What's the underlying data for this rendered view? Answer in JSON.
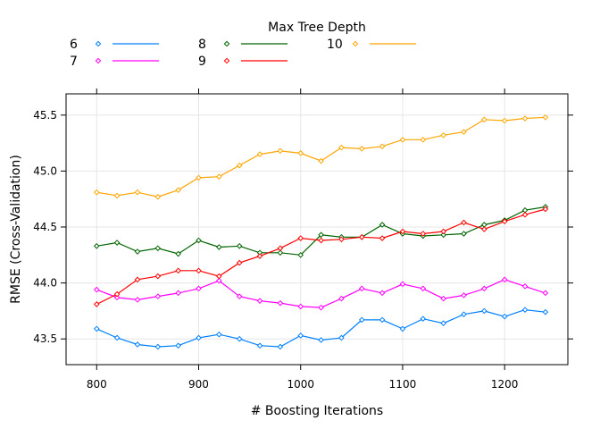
{
  "chart_data": {
    "type": "line",
    "xlabel": "# Boosting Iterations",
    "ylabel": "RMSE (Cross-Validation)",
    "xlim": [
      770,
      1262
    ],
    "ylim": [
      43.27,
      45.69
    ],
    "x_ticks": [
      800,
      900,
      1000,
      1100,
      1200
    ],
    "y_ticks": [
      43.5,
      44.0,
      44.5,
      45.0,
      45.5
    ],
    "y_tick_labels": [
      "43.5",
      "44.0",
      "44.5",
      "45.0",
      "45.5"
    ],
    "grid": true,
    "legend": {
      "title": "Max Tree Depth",
      "placement": "top",
      "columns": [
        [
          "6",
          "7"
        ],
        [
          "8",
          "9"
        ],
        [
          "10"
        ]
      ]
    },
    "x": [
      800,
      820,
      840,
      860,
      880,
      900,
      920,
      940,
      960,
      980,
      1000,
      1020,
      1040,
      1060,
      1080,
      1100,
      1120,
      1140,
      1160,
      1180,
      1200,
      1220,
      1240
    ],
    "series": [
      {
        "name": "6",
        "color": "#0080ff",
        "values": [
          43.59,
          43.51,
          43.45,
          43.43,
          43.44,
          43.51,
          43.54,
          43.5,
          43.44,
          43.43,
          43.53,
          43.49,
          43.51,
          43.67,
          43.67,
          43.59,
          43.68,
          43.64,
          43.72,
          43.75,
          43.7,
          43.76,
          43.74
        ]
      },
      {
        "name": "7",
        "color": "#ff00ff",
        "values": [
          43.94,
          43.87,
          43.85,
          43.88,
          43.91,
          43.95,
          44.02,
          43.88,
          43.84,
          43.82,
          43.79,
          43.78,
          43.86,
          43.95,
          43.91,
          43.99,
          43.95,
          43.86,
          43.89,
          43.95,
          44.03,
          43.97,
          43.91
        ]
      },
      {
        "name": "8",
        "color": "#006400",
        "values": [
          44.33,
          44.36,
          44.28,
          44.31,
          44.26,
          44.38,
          44.32,
          44.33,
          44.27,
          44.27,
          44.25,
          44.43,
          44.41,
          44.41,
          44.52,
          44.44,
          44.42,
          44.43,
          44.44,
          44.52,
          44.56,
          44.65,
          44.68
        ]
      },
      {
        "name": "9",
        "color": "#ff0000",
        "values": [
          43.81,
          43.9,
          44.03,
          44.06,
          44.11,
          44.11,
          44.06,
          44.18,
          44.24,
          44.31,
          44.4,
          44.38,
          44.39,
          44.41,
          44.4,
          44.46,
          44.44,
          44.46,
          44.54,
          44.48,
          44.55,
          44.61,
          44.66
        ]
      },
      {
        "name": "10",
        "color": "#ffa500",
        "values": [
          44.81,
          44.78,
          44.81,
          44.77,
          44.83,
          44.94,
          44.95,
          45.05,
          45.15,
          45.18,
          45.16,
          45.09,
          45.21,
          45.2,
          45.22,
          45.28,
          45.28,
          45.32,
          45.35,
          45.46,
          45.45,
          45.47,
          45.48
        ]
      }
    ]
  }
}
